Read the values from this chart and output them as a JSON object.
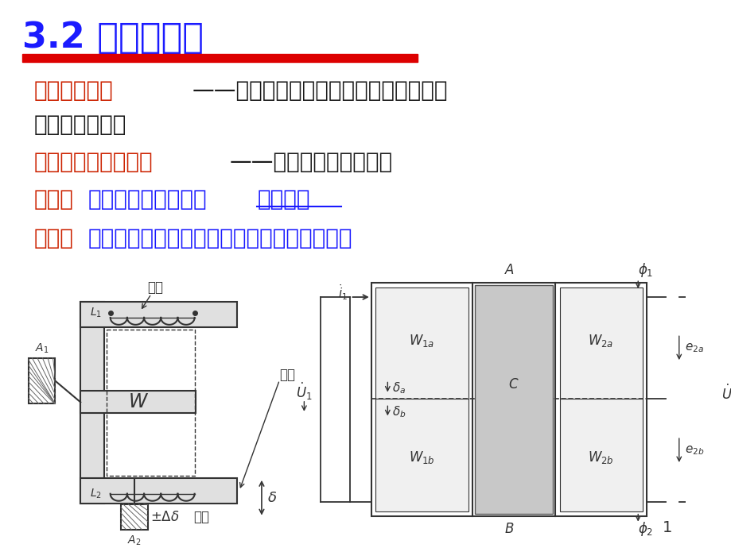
{
  "title": "3.2 差动变压器",
  "title_color": "#1a1aff",
  "title_fontsize": 32,
  "red_bar_color": "#dd0000",
  "line1_red": "互感式传感器",
  "line1_black": "——把被测的非电量变化转换为线圈互感",
  "line2_black": "变化的传感器。",
  "line3_red": "差动变压器式传感器",
  "line3_black": "——次级绕组用差动形式",
  "line4_red": "结构：",
  "line4_blue1": "变隙式、变面积式、",
  "line4_blue2": "螺线管式",
  "line5_red": "优点：",
  "line5_blue": "测量精度高、灵敏度高、结构简单、性能可靠",
  "text_fontsize": 18,
  "text_fontsize_large": 20,
  "bg_color": "#ffffff",
  "label_color_red": "#cc2200",
  "label_color_blue": "#1a1aff",
  "label_color_black": "#1a1a1a",
  "label_color_darkgray": "#333333"
}
